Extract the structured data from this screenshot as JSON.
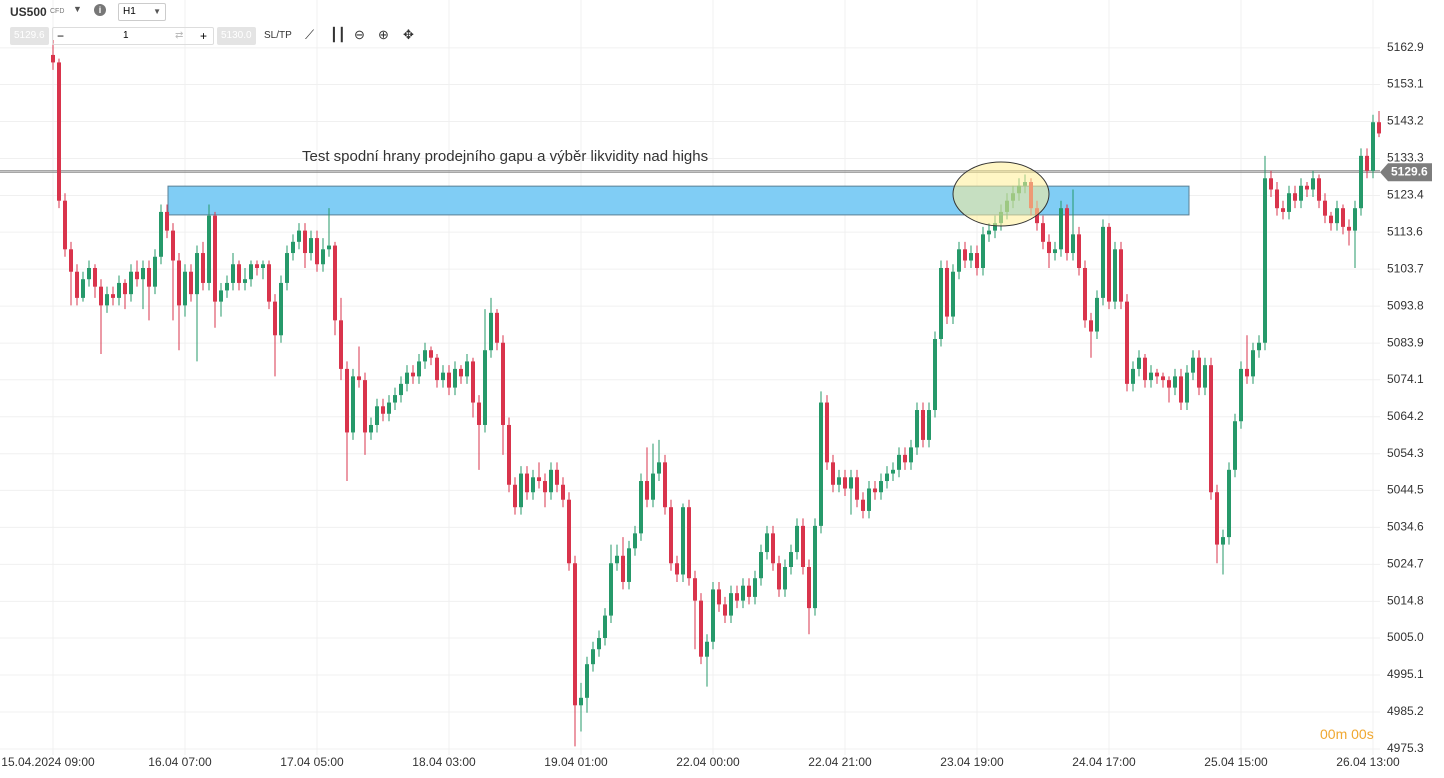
{
  "toolbar": {
    "symbol": "US500",
    "symbol_type": "CFD",
    "timeframe": "H1",
    "bid": "5129.6",
    "quantity": "1",
    "ask": "5130.0",
    "sltp": "SL/TP"
  },
  "timer": "00m 00s",
  "chart_data": {
    "type": "candlestick",
    "annotation": "Test spodní hrany prodejního gapu a výběr likvidity nad highs",
    "up_color": "#26996a",
    "down_color": "#d9344c",
    "bid_price": 5129.6,
    "ask_price": {
      "value": 5130,
      "label": "5130.0"
    },
    "zone": {
      "low": 5118.2,
      "high": 5125.9,
      "color": "#80cdf5"
    },
    "ylim": [
      4973.7,
      5175.7
    ],
    "yticks": [
      5162.9,
      5153.1,
      5143.2,
      5133.3,
      5123.4,
      5113.6,
      5103.7,
      5093.8,
      5083.9,
      5074.1,
      5064.2,
      5054.3,
      5044.5,
      5034.6,
      5024.7,
      5014.8,
      {
        "value": 5005,
        "label": "5005.0"
      },
      4995.1,
      4985.2,
      4975.3
    ],
    "grid": true,
    "categories": [
      "15.04.2024 09:00",
      null,
      null,
      null,
      null,
      null,
      null,
      null,
      null,
      null,
      null,
      null,
      null,
      null,
      null,
      null,
      null,
      null,
      null,
      null,
      null,
      null,
      "16.04 07:00",
      null,
      null,
      null,
      null,
      null,
      null,
      null,
      null,
      null,
      null,
      null,
      null,
      null,
      null,
      null,
      null,
      null,
      null,
      null,
      null,
      null,
      "17.04 05:00",
      null,
      null,
      null,
      null,
      null,
      null,
      null,
      null,
      null,
      null,
      null,
      null,
      null,
      null,
      null,
      null,
      null,
      null,
      null,
      null,
      null,
      "18.04 03:00",
      null,
      null,
      null,
      null,
      null,
      null,
      null,
      null,
      null,
      null,
      null,
      null,
      null,
      null,
      null,
      null,
      null,
      null,
      null,
      null,
      null,
      "19.04 01:00",
      null,
      null,
      null,
      null,
      null,
      null,
      null,
      null,
      null,
      null,
      null,
      null,
      null,
      null,
      null,
      null,
      null,
      null,
      null,
      null,
      null,
      "22.04 00:00",
      null,
      null,
      null,
      null,
      null,
      null,
      null,
      null,
      null,
      null,
      null,
      null,
      null,
      null,
      null,
      null,
      null,
      null,
      null,
      null,
      null,
      "22.04 21:00",
      null,
      null,
      null,
      null,
      null,
      null,
      null,
      null,
      null,
      null,
      null,
      null,
      null,
      null,
      null,
      null,
      null,
      null,
      null,
      null,
      null,
      "23.04 19:00",
      null,
      null,
      null,
      null,
      null,
      null,
      null,
      null,
      null,
      null,
      null,
      null,
      null,
      null,
      null,
      null,
      null,
      null,
      null,
      null,
      null,
      "24.04 17:00",
      null,
      null,
      null,
      null,
      null,
      null,
      null,
      null,
      null,
      null,
      null,
      null,
      null,
      null,
      null,
      null,
      null,
      null,
      null,
      null,
      null,
      "25.04 15:00",
      null,
      null,
      null,
      null,
      null,
      null,
      null,
      null,
      null,
      null,
      null,
      null,
      null,
      null,
      null,
      null,
      null,
      null,
      null,
      null,
      null,
      "26.04 13:00",
      null
    ],
    "ohlc": [
      [
        5161,
        5165,
        5157,
        5159
      ],
      [
        5159,
        5160,
        5120,
        5122
      ],
      [
        5122,
        5124,
        5107,
        5109
      ],
      [
        5109,
        5111,
        5094,
        5103
      ],
      [
        5103,
        5105,
        5094,
        5096
      ],
      [
        5096,
        5103,
        5095,
        5101
      ],
      [
        5101,
        5106,
        5099,
        5104
      ],
      [
        5104,
        5105,
        5096,
        5099
      ],
      [
        5099,
        5101,
        5081,
        5094
      ],
      [
        5094,
        5099,
        5092,
        5097
      ],
      [
        5097,
        5099,
        5094,
        5096
      ],
      [
        5096,
        5102,
        5094,
        5100
      ],
      [
        5100,
        5101,
        5093,
        5097
      ],
      [
        5097,
        5105,
        5095,
        5103
      ],
      [
        5103,
        5106,
        5099,
        5101
      ],
      [
        5101,
        5106,
        5093,
        5104
      ],
      [
        5104,
        5106,
        5090,
        5099
      ],
      [
        5099,
        5109,
        5097,
        5107
      ],
      [
        5107,
        5121,
        5105,
        5119
      ],
      [
        5119,
        5121,
        5112,
        5114
      ],
      [
        5114,
        5116,
        5090,
        5106
      ],
      [
        5106,
        5108,
        5082,
        5094
      ],
      [
        5094,
        5105,
        5091,
        5103
      ],
      [
        5103,
        5105,
        5095,
        5097
      ],
      [
        5097,
        5110,
        5079,
        5108
      ],
      [
        5108,
        5111,
        5098,
        5100
      ],
      [
        5100,
        5121,
        5098,
        5118
      ],
      [
        5118,
        5119,
        5088,
        5095
      ],
      [
        5095,
        5100,
        5091,
        5098
      ],
      [
        5098,
        5102,
        5096,
        5100
      ],
      [
        5100,
        5108,
        5098,
        5105
      ],
      [
        5105,
        5106,
        5098,
        5100
      ],
      [
        5100,
        5104,
        5098,
        5101
      ],
      [
        5101,
        5106,
        5099,
        5105
      ],
      [
        5105,
        5106,
        5102,
        5104
      ],
      [
        5104,
        5106,
        5101,
        5105
      ],
      [
        5105,
        5106,
        5093,
        5095
      ],
      [
        5095,
        5097,
        5075,
        5086
      ],
      [
        5086,
        5102,
        5084,
        5100
      ],
      [
        5100,
        5110,
        5098,
        5108
      ],
      [
        5108,
        5113,
        5106,
        5111
      ],
      [
        5111,
        5116,
        5109,
        5114
      ],
      [
        5114,
        5116,
        5104,
        5108
      ],
      [
        5108,
        5114,
        5106,
        5112
      ],
      [
        5112,
        5114,
        5103,
        5105
      ],
      [
        5105,
        5112,
        5103,
        5109
      ],
      [
        5109,
        5120,
        5107,
        5110
      ],
      [
        5110,
        5111,
        5086,
        5090
      ],
      [
        5090,
        5096,
        5074,
        5077
      ],
      [
        5077,
        5079,
        5047,
        5060
      ],
      [
        5060,
        5077,
        5058,
        5075
      ],
      [
        5075,
        5083,
        5072,
        5074
      ],
      [
        5074,
        5076,
        5054,
        5060
      ],
      [
        5060,
        5064,
        5058,
        5062
      ],
      [
        5062,
        5069,
        5060,
        5067
      ],
      [
        5067,
        5069,
        5063,
        5065
      ],
      [
        5065,
        5070,
        5063,
        5068
      ],
      [
        5068,
        5072,
        5066,
        5070
      ],
      [
        5070,
        5075,
        5068,
        5073
      ],
      [
        5073,
        5078,
        5071,
        5076
      ],
      [
        5076,
        5078,
        5073,
        5075
      ],
      [
        5075,
        5081,
        5073,
        5079
      ],
      [
        5079,
        5084,
        5077,
        5082
      ],
      [
        5082,
        5083,
        5078,
        5080
      ],
      [
        5080,
        5081,
        5072,
        5074
      ],
      [
        5074,
        5078,
        5072,
        5076
      ],
      [
        5076,
        5078,
        5070,
        5072
      ],
      [
        5072,
        5079,
        5070,
        5077
      ],
      [
        5077,
        5078,
        5073,
        5075
      ],
      [
        5075,
        5081,
        5073,
        5079
      ],
      [
        5079,
        5080,
        5064,
        5068
      ],
      [
        5068,
        5070,
        5050,
        5062
      ],
      [
        5062,
        5093,
        5060,
        5082
      ],
      [
        5082,
        5096,
        5080,
        5092
      ],
      [
        5092,
        5093,
        5082,
        5084
      ],
      [
        5084,
        5086,
        5054,
        5062
      ],
      [
        5062,
        5064,
        5044,
        5046
      ],
      [
        5046,
        5048,
        5038,
        5040
      ],
      [
        5040,
        5051,
        5038,
        5049
      ],
      [
        5049,
        5051,
        5042,
        5044
      ],
      [
        5044,
        5050,
        5042,
        5048
      ],
      [
        5048,
        5052,
        5045,
        5047
      ],
      [
        5047,
        5049,
        5040,
        5044
      ],
      [
        5044,
        5052,
        5042,
        5050
      ],
      [
        5050,
        5052,
        5044,
        5046
      ],
      [
        5046,
        5048,
        5040,
        5042
      ],
      [
        5042,
        5044,
        5023,
        5025
      ],
      [
        5025,
        5027,
        4976,
        4987
      ],
      [
        4987,
        4993,
        4980,
        4989
      ],
      [
        4989,
        5000,
        4985,
        4998
      ],
      [
        4998,
        5004,
        4996,
        5002
      ],
      [
        5002,
        5007,
        5000,
        5005
      ],
      [
        5005,
        5013,
        5003,
        5011
      ],
      [
        5011,
        5030,
        5009,
        5025
      ],
      [
        5025,
        5030,
        5023,
        5027
      ],
      [
        5027,
        5032,
        5018,
        5020
      ],
      [
        5020,
        5031,
        5018,
        5029
      ],
      [
        5029,
        5035,
        5027,
        5033
      ],
      [
        5033,
        5049,
        5031,
        5047
      ],
      [
        5047,
        5056,
        5040,
        5042
      ],
      [
        5042,
        5057,
        5040,
        5049
      ],
      [
        5049,
        5058,
        5047,
        5052
      ],
      [
        5052,
        5054,
        5038,
        5040
      ],
      [
        5040,
        5042,
        5023,
        5025
      ],
      [
        5025,
        5027,
        5020,
        5022
      ],
      [
        5022,
        5041,
        5020,
        5040
      ],
      [
        5040,
        5042,
        5019,
        5021
      ],
      [
        5021,
        5023,
        5002,
        5015
      ],
      [
        5015,
        5017,
        4998,
        5000
      ],
      [
        5000,
        5006,
        4992,
        5004
      ],
      [
        5004,
        5020,
        5002,
        5018
      ],
      [
        5018,
        5020,
        5012,
        5014
      ],
      [
        5014,
        5016,
        5009,
        5011
      ],
      [
        5011,
        5019,
        5009,
        5017
      ],
      [
        5017,
        5019,
        5013,
        5015
      ],
      [
        5015,
        5021,
        5013,
        5019
      ],
      [
        5019,
        5021,
        5014,
        5016
      ],
      [
        5016,
        5023,
        5014,
        5021
      ],
      [
        5021,
        5030,
        5019,
        5028
      ],
      [
        5028,
        5035,
        5026,
        5033
      ],
      [
        5033,
        5035,
        5023,
        5025
      ],
      [
        5025,
        5027,
        5016,
        5018
      ],
      [
        5018,
        5026,
        5016,
        5024
      ],
      [
        5024,
        5030,
        5022,
        5028
      ],
      [
        5028,
        5037,
        5026,
        5035
      ],
      [
        5035,
        5037,
        5022,
        5024
      ],
      [
        5024,
        5026,
        5006,
        5013
      ],
      [
        5013,
        5037,
        5011,
        5035
      ],
      [
        5035,
        5071,
        5033,
        5068
      ],
      [
        5068,
        5070,
        5050,
        5052
      ],
      [
        5052,
        5054,
        5044,
        5046
      ],
      [
        5046,
        5050,
        5044,
        5048
      ],
      [
        5048,
        5050,
        5043,
        5045
      ],
      [
        5045,
        5050,
        5038,
        5048
      ],
      [
        5048,
        5050,
        5040,
        5042
      ],
      [
        5042,
        5044,
        5037,
        5039
      ],
      [
        5039,
        5047,
        5037,
        5045
      ],
      [
        5045,
        5047,
        5042,
        5044
      ],
      [
        5044,
        5049,
        5042,
        5047
      ],
      [
        5047,
        5051,
        5045,
        5049
      ],
      [
        5049,
        5052,
        5047,
        5050
      ],
      [
        5050,
        5056,
        5048,
        5054
      ],
      [
        5054,
        5056,
        5050,
        5052
      ],
      [
        5052,
        5058,
        5050,
        5056
      ],
      [
        5056,
        5068,
        5054,
        5066
      ],
      [
        5066,
        5068,
        5056,
        5058
      ],
      [
        5058,
        5068,
        5056,
        5066
      ],
      [
        5066,
        5087,
        5064,
        5085
      ],
      [
        5085,
        5106,
        5083,
        5104
      ],
      [
        5104,
        5106,
        5089,
        5091
      ],
      [
        5091,
        5105,
        5089,
        5103
      ],
      [
        5103,
        5111,
        5101,
        5109
      ],
      [
        5109,
        5111,
        5104,
        5106
      ],
      [
        5106,
        5110,
        5104,
        5108
      ],
      [
        5108,
        5110,
        5102,
        5104
      ],
      [
        5104,
        5115,
        5102,
        5113
      ],
      [
        5113,
        5116,
        5111,
        5114
      ],
      [
        5114,
        5118,
        5112,
        5116
      ],
      [
        5116,
        5121,
        5114,
        5119
      ],
      [
        5119,
        5124,
        5117,
        5122
      ],
      [
        5122,
        5126,
        5120,
        5124
      ],
      [
        5124,
        5128,
        5122,
        5126
      ],
      [
        5126,
        5129,
        5124,
        5127
      ],
      [
        5127,
        5128,
        5118,
        5120
      ],
      [
        5120,
        5122,
        5114,
        5116
      ],
      [
        5116,
        5118,
        5109,
        5111
      ],
      [
        5111,
        5113,
        5104,
        5108
      ],
      [
        5108,
        5111,
        5106,
        5109
      ],
      [
        5109,
        5122,
        5107,
        5120
      ],
      [
        5120,
        5121,
        5106,
        5108
      ],
      [
        5108,
        5125,
        5106,
        5113
      ],
      [
        5113,
        5115,
        5102,
        5104
      ],
      [
        5104,
        5106,
        5088,
        5090
      ],
      [
        5090,
        5092,
        5080,
        5087
      ],
      [
        5087,
        5098,
        5085,
        5096
      ],
      [
        5096,
        5117,
        5094,
        5115
      ],
      [
        5115,
        5116,
        5093,
        5095
      ],
      [
        5095,
        5111,
        5093,
        5109
      ],
      [
        5109,
        5111,
        5093,
        5095
      ],
      [
        5095,
        5097,
        5071,
        5073
      ],
      [
        5073,
        5079,
        5071,
        5077
      ],
      [
        5077,
        5082,
        5075,
        5080
      ],
      [
        5080,
        5081,
        5072,
        5074
      ],
      [
        5074,
        5078,
        5072,
        5076
      ],
      [
        5076,
        5077,
        5073,
        5075
      ],
      [
        5075,
        5076,
        5072,
        5074
      ],
      [
        5074,
        5075,
        5068,
        5072
      ],
      [
        5072,
        5077,
        5070,
        5075
      ],
      [
        5075,
        5077,
        5066,
        5068
      ],
      [
        5068,
        5078,
        5066,
        5076
      ],
      [
        5076,
        5082,
        5074,
        5080
      ],
      [
        5080,
        5082,
        5070,
        5072
      ],
      [
        5072,
        5080,
        5070,
        5078
      ],
      [
        5078,
        5080,
        5042,
        5044
      ],
      [
        5044,
        5046,
        5025,
        5030
      ],
      [
        5030,
        5034,
        5022,
        5032
      ],
      [
        5032,
        5052,
        5030,
        5050
      ],
      [
        5050,
        5065,
        5048,
        5063
      ],
      [
        5063,
        5079,
        5061,
        5077
      ],
      [
        5077,
        5086,
        5073,
        5075
      ],
      [
        5075,
        5084,
        5073,
        5082
      ],
      [
        5082,
        5086,
        5080,
        5084
      ],
      [
        5084,
        5134,
        5082,
        5128
      ],
      [
        5128,
        5130,
        5123,
        5125
      ],
      [
        5125,
        5127,
        5118,
        5120
      ],
      [
        5120,
        5122,
        5117,
        5119
      ],
      [
        5119,
        5126,
        5117,
        5124
      ],
      [
        5124,
        5126,
        5120,
        5122
      ],
      [
        5122,
        5128,
        5120,
        5126
      ],
      [
        5126,
        5127,
        5123,
        5125
      ],
      [
        5125,
        5130,
        5123,
        5128
      ],
      [
        5128,
        5129,
        5120,
        5122
      ],
      [
        5122,
        5124,
        5116,
        5118
      ],
      [
        5118,
        5119,
        5114,
        5116
      ],
      [
        5116,
        5122,
        5114,
        5120
      ],
      [
        5120,
        5121,
        5113,
        5115
      ],
      [
        5115,
        5117,
        5110,
        5114
      ],
      [
        5114,
        5122,
        5104,
        5120
      ],
      [
        5120,
        5136,
        5118,
        5134
      ],
      [
        5134,
        5136,
        5128,
        5130
      ],
      [
        5130,
        5145,
        5128,
        5143
      ],
      [
        5143,
        5146,
        5139,
        5140
      ]
    ]
  }
}
